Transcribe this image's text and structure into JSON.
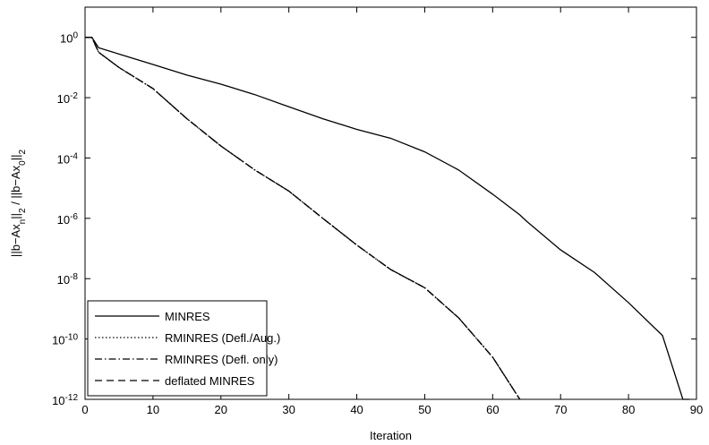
{
  "chart_data": {
    "type": "line",
    "xlabel": "Iteration",
    "ylabel": "||b−Ax_n||_2 / ||b−Ax_0||_2",
    "x": [
      0,
      1,
      2,
      5,
      10,
      15,
      20,
      25,
      30,
      35,
      40,
      45,
      50,
      55,
      60,
      64,
      65,
      70,
      75,
      80,
      85,
      88,
      89
    ],
    "xlim": [
      0,
      90
    ],
    "xticks": [
      0,
      10,
      20,
      30,
      40,
      50,
      60,
      70,
      80,
      90
    ],
    "ylim": [
      1e-12,
      10
    ],
    "ylog": true,
    "yticks": [
      {
        "value": 1e-12,
        "label": "10^-12"
      },
      {
        "value": 1e-10,
        "label": "10^-10"
      },
      {
        "value": 1e-08,
        "label": "10^-8"
      },
      {
        "value": 1e-06,
        "label": "10^-6"
      },
      {
        "value": 0.0001,
        "label": "10^-4"
      },
      {
        "value": 0.01,
        "label": "10^-2"
      },
      {
        "value": 1,
        "label": "10^0"
      }
    ],
    "legend": "lower left",
    "series": [
      {
        "name": "MINRES",
        "color": "#000000",
        "dash": "solid",
        "values": [
          1,
          1,
          0.45,
          0.28,
          0.126,
          0.056,
          0.028,
          0.0126,
          0.005,
          0.002,
          0.00089,
          0.00045,
          0.00016,
          4e-05,
          6.3e-06,
          1.3e-06,
          8e-07,
          9e-08,
          1.6e-08,
          1.6e-09,
          1.3e-10,
          1e-12,
          1e-12
        ]
      },
      {
        "name": "RMINRES (Defl./Aug.)",
        "color": "#000000",
        "dash": "dotted",
        "values": [
          1,
          1,
          0.32,
          0.1,
          0.02,
          0.002,
          0.00025,
          4e-05,
          8e-06,
          1e-06,
          1.3e-07,
          2e-08,
          5e-09,
          5e-10,
          2.5e-11,
          1e-12,
          null,
          null,
          null,
          null,
          null,
          null,
          null
        ]
      },
      {
        "name": "RMINRES (Defl. only)",
        "color": "#000000",
        "dash": "dashdot",
        "values": [
          1,
          1,
          0.32,
          0.1,
          0.02,
          0.002,
          0.00025,
          4e-05,
          8e-06,
          1e-06,
          1.3e-07,
          2e-08,
          5e-09,
          5e-10,
          2.5e-11,
          1e-12,
          null,
          null,
          null,
          null,
          null,
          null,
          null
        ]
      },
      {
        "name": "deflated MINRES",
        "color": "#000000",
        "dash": "dashed",
        "values": [
          1,
          1,
          0.32,
          0.1,
          0.02,
          0.002,
          0.00025,
          4e-05,
          8e-06,
          1e-06,
          1.3e-07,
          2e-08,
          5e-09,
          5e-10,
          2.5e-11,
          1e-12,
          null,
          null,
          null,
          null,
          null,
          null,
          null
        ]
      }
    ]
  }
}
